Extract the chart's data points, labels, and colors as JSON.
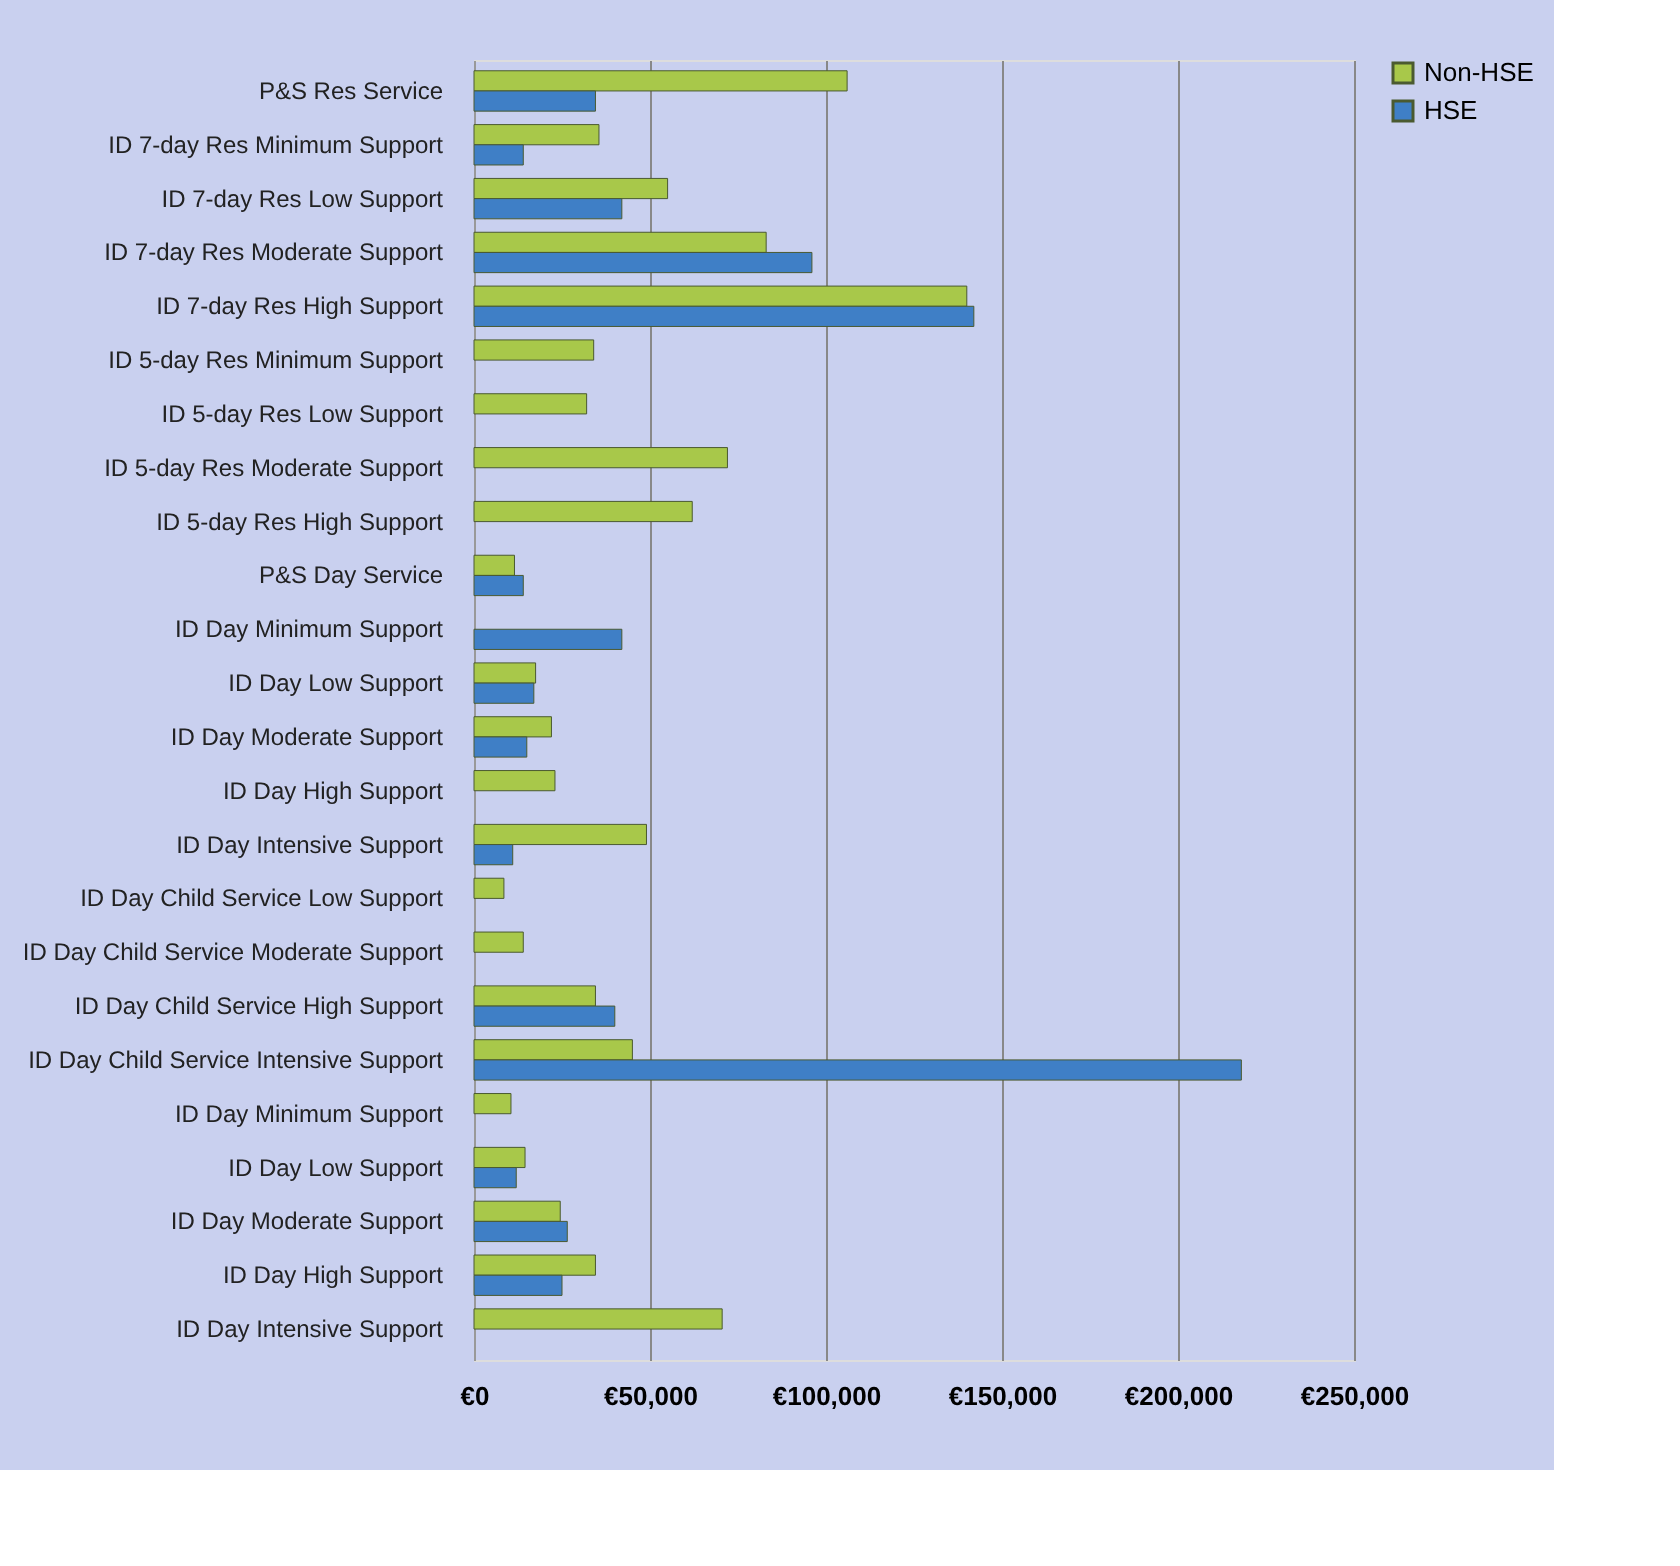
{
  "chart_data": {
    "type": "bar",
    "orientation": "horizontal",
    "categories": [
      "P&S Res Service",
      "ID 7-day Res Minimum Support",
      "ID 7-day Res Low Support",
      "ID 7-day Res Moderate Support",
      "ID 7-day Res High Support",
      "ID 5-day Res Minimum Support",
      "ID 5-day Res Low Support",
      "ID 5-day Res Moderate Support",
      "ID 5-day Res High Support",
      "P&S Day Service",
      "ID Day Minimum Support",
      "ID Day Low Support",
      "ID Day Moderate Support",
      "ID Day High Support",
      "ID Day Intensive Support",
      "ID Day Child Service Low Support",
      "ID Day Child Service Moderate Support",
      "ID Day Child Service High Support",
      "ID Day Child Service Intensive Support",
      "ID Day Minimum Support",
      "ID Day Low Support",
      "ID Day Moderate Support",
      "ID Day High Support",
      "ID Day Intensive Support"
    ],
    "series": [
      {
        "name": "Non-HSE",
        "color": "#a8c84a",
        "values": [
          106000,
          35500,
          55000,
          83000,
          140000,
          34000,
          32000,
          72000,
          62000,
          11500,
          null,
          17500,
          22000,
          23000,
          49000,
          8500,
          14000,
          34500,
          45000,
          10500,
          14500,
          24500,
          34500,
          70500
        ]
      },
      {
        "name": "HSE",
        "color": "#3f7fc6",
        "values": [
          34500,
          14000,
          42000,
          96000,
          142000,
          null,
          null,
          null,
          null,
          14000,
          42000,
          17000,
          15000,
          null,
          11000,
          null,
          null,
          40000,
          218000,
          null,
          12000,
          26500,
          25000,
          null
        ]
      }
    ],
    "xlim": [
      0,
      250000
    ],
    "xticks": [
      {
        "value": 0,
        "label": "€0"
      },
      {
        "value": 50000,
        "label": "€50,000"
      },
      {
        "value": 100000,
        "label": "€100,000"
      },
      {
        "value": 150000,
        "label": "€150,000"
      },
      {
        "value": 200000,
        "label": "€200,000"
      },
      {
        "value": 250000,
        "label": "€250,000"
      }
    ],
    "grid": "x",
    "legend": "right"
  }
}
